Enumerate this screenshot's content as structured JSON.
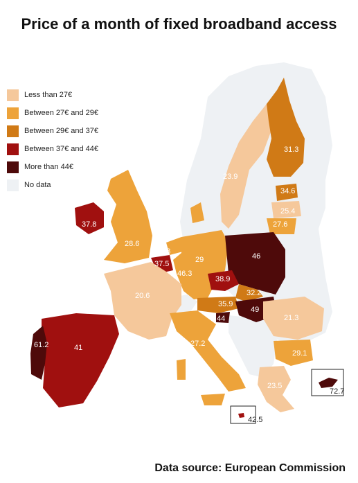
{
  "title": "Price of a month of fixed broadband access",
  "source": "Data source: European Commission",
  "legend": [
    {
      "label": "Less than 27€",
      "color": "#f5c89b"
    },
    {
      "label": "Between 27€ and 29€",
      "color": "#eda33a"
    },
    {
      "label": "Between 29€ and 37€",
      "color": "#d07a16"
    },
    {
      "label": "Between 37€ and 44€",
      "color": "#a0100f"
    },
    {
      "label": "More than  44€",
      "color": "#4e0a0a"
    },
    {
      "label": "No data",
      "color": "#eef1f4"
    }
  ],
  "countries": {
    "finland": "31.3",
    "sweden": "23.9",
    "estonia": "34.6",
    "latvia": "25.4",
    "lithuania": "27.6",
    "ireland": "37.8",
    "uk": "28.6",
    "netherlands": "28",
    "belgium": "37.5",
    "luxembourg": "46.3",
    "germany": "29",
    "poland": "46",
    "czechia": "38.9",
    "slovakia": "32.2",
    "austria": "35.9",
    "hungary": "49",
    "slovenia": "44",
    "france": "20.6",
    "italy": "27.2",
    "romania": "21.3",
    "bulgaria": "29.1",
    "greece": "23.5",
    "spain": "41",
    "portugal": "61.2",
    "cyprus": "72.7",
    "malta": "42.5"
  }
}
